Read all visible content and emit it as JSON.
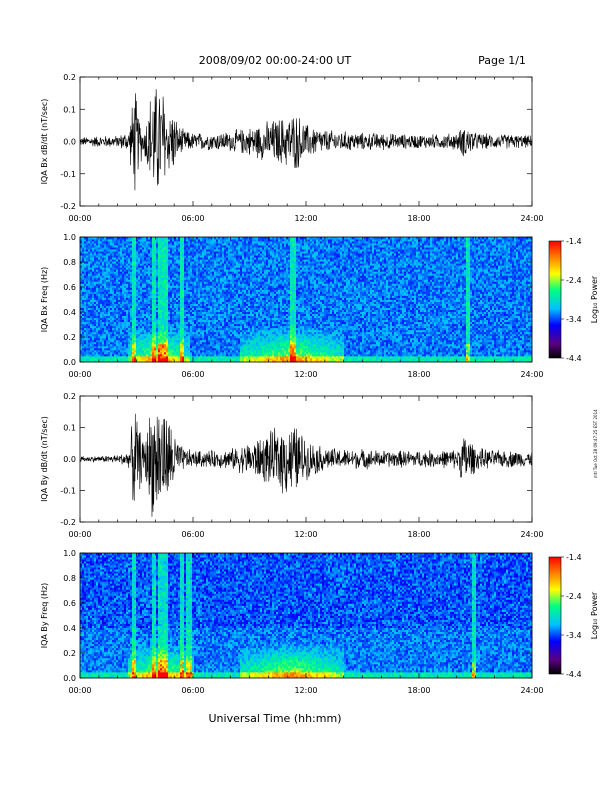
{
  "header": {
    "title": "2008/09/02  00:00-24:00 UT",
    "page": "Page 1/1"
  },
  "side_stamp": "mtl Tue Oct 28 09:47:25 EST 2014",
  "xlabel": "Universal Time (hh:mm)",
  "x_ticks": [
    "00:00",
    "06:00",
    "12:00",
    "18:00",
    "24:00"
  ],
  "colorbar": {
    "label": "Log₁₀ Power",
    "ticks": [
      "-1.4",
      "-2.4",
      "-3.4",
      "-4.4"
    ]
  },
  "colors": {
    "waveform": "#000000",
    "spectrogram_scale": [
      "#000000",
      "#5b0080",
      "#0000ff",
      "#00c0ff",
      "#00ff80",
      "#ffff00",
      "#ff8000",
      "#ff0000"
    ]
  },
  "chart_data": [
    {
      "type": "line",
      "ylabel": "IQA Bx dB/dt (nT/sec)",
      "xlim": [
        0,
        24
      ],
      "ylim": [
        -0.2,
        0.2
      ],
      "y_ticks": [
        "0.2",
        "0.1",
        "0.0",
        "-0.1",
        "-0.2"
      ],
      "envelope": {
        "hours": [
          0,
          1,
          2,
          2.6,
          2.9,
          3.1,
          3.4,
          3.8,
          4.1,
          4.4,
          4.6,
          4.9,
          5.2,
          5.5,
          6,
          7,
          8,
          9,
          10,
          11,
          11.5,
          12,
          13,
          14,
          15,
          16,
          17,
          18,
          19,
          20,
          20.5,
          21,
          22,
          23,
          24
        ],
        "amplitude": [
          0.015,
          0.02,
          0.02,
          0.04,
          0.2,
          0.1,
          0.04,
          0.19,
          0.2,
          0.2,
          0.1,
          0.12,
          0.06,
          0.04,
          0.03,
          0.03,
          0.035,
          0.05,
          0.07,
          0.09,
          0.1,
          0.06,
          0.04,
          0.035,
          0.03,
          0.03,
          0.025,
          0.025,
          0.025,
          0.03,
          0.06,
          0.03,
          0.025,
          0.025,
          0.02
        ]
      }
    },
    {
      "type": "heatmap",
      "ylabel": "IQA Bx Freq (Hz)",
      "xlim": [
        0,
        24
      ],
      "ylim": [
        0,
        1.0
      ],
      "y_ticks": [
        "1.0",
        "0.8",
        "0.6",
        "0.4",
        "0.2",
        "0.0"
      ],
      "zlim": [
        -4.4,
        -1.4
      ],
      "bursts_hours": [
        2.9,
        3.9,
        4.3,
        4.6,
        5.4,
        11.3,
        20.6
      ],
      "low_freq_enhancement_hours": [
        [
          2.5,
          5.8
        ],
        [
          8.5,
          14
        ]
      ]
    },
    {
      "type": "line",
      "ylabel": "IQA By dB/dt (nT/sec)",
      "xlim": [
        0,
        24
      ],
      "ylim": [
        -0.2,
        0.2
      ],
      "y_ticks": [
        "0.2",
        "0.1",
        "0.0",
        "-0.1",
        "-0.2"
      ],
      "envelope": {
        "hours": [
          0,
          1,
          2,
          2.6,
          2.9,
          3.1,
          3.4,
          3.8,
          4.1,
          4.4,
          4.6,
          4.9,
          5.2,
          5.5,
          6,
          7,
          8,
          9,
          10,
          11,
          11.5,
          12,
          13,
          14,
          15,
          16,
          17,
          18,
          19,
          20,
          20.5,
          21,
          22,
          23,
          24
        ],
        "amplitude": [
          0.01,
          0.01,
          0.015,
          0.03,
          0.2,
          0.12,
          0.06,
          0.2,
          0.2,
          0.2,
          0.15,
          0.13,
          0.06,
          0.04,
          0.03,
          0.03,
          0.035,
          0.06,
          0.09,
          0.13,
          0.12,
          0.07,
          0.04,
          0.035,
          0.035,
          0.03,
          0.03,
          0.03,
          0.03,
          0.035,
          0.1,
          0.04,
          0.03,
          0.03,
          0.025
        ]
      }
    },
    {
      "type": "heatmap",
      "ylabel": "IQA By Freq (Hz)",
      "xlim": [
        0,
        24
      ],
      "ylim": [
        0,
        1.0
      ],
      "y_ticks": [
        "1.0",
        "0.8",
        "0.6",
        "0.4",
        "0.2",
        "0.0"
      ],
      "zlim": [
        -4.4,
        -1.4
      ],
      "bursts_hours": [
        2.9,
        3.9,
        4.3,
        4.6,
        5.4,
        5.8,
        20.9
      ],
      "low_freq_enhancement_hours": [
        [
          2.5,
          6.0
        ],
        [
          8.5,
          14
        ]
      ]
    }
  ]
}
